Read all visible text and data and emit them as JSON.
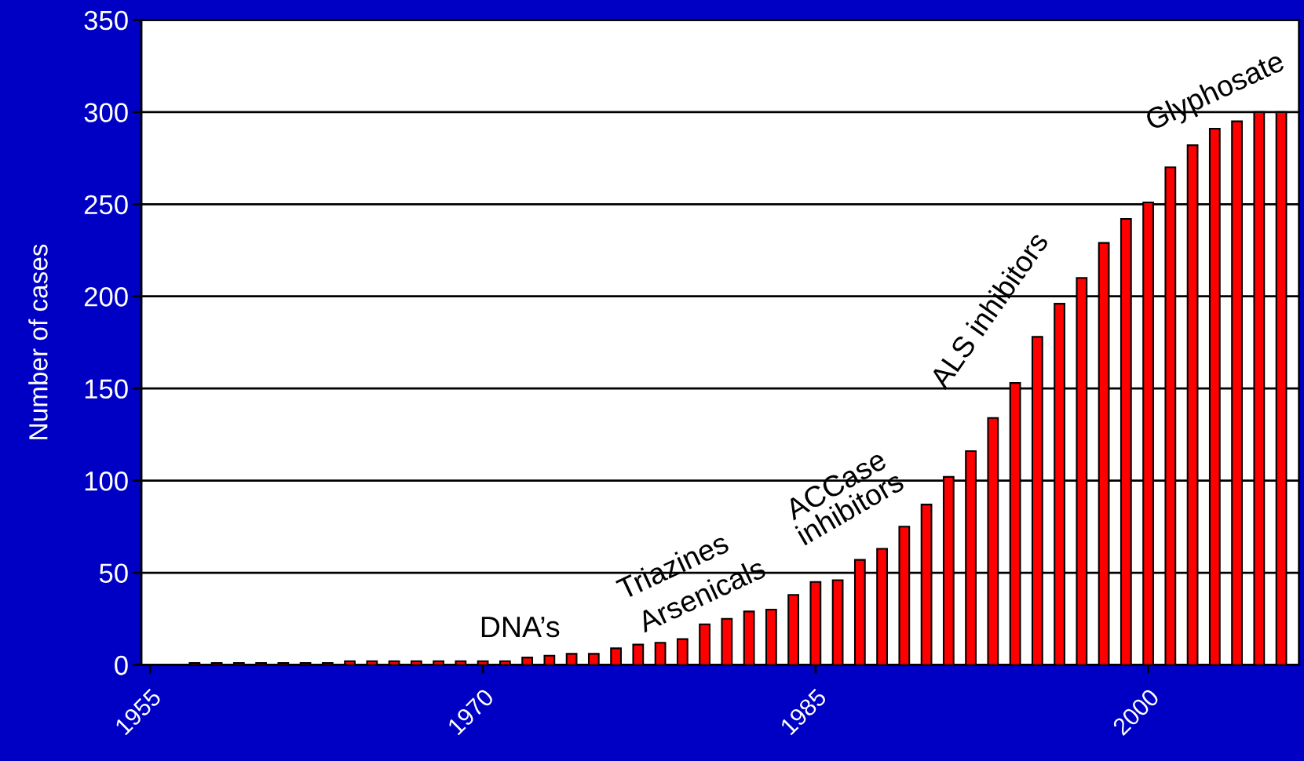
{
  "chart_data": {
    "type": "bar",
    "ylabel": "Number of cases",
    "x": [
      1957,
      1958,
      1959,
      1960,
      1961,
      1962,
      1963,
      1964,
      1965,
      1966,
      1967,
      1968,
      1969,
      1970,
      1971,
      1972,
      1973,
      1974,
      1975,
      1976,
      1977,
      1978,
      1979,
      1980,
      1981,
      1982,
      1983,
      1984,
      1985,
      1986,
      1987,
      1988,
      1989,
      1990,
      1991,
      1992,
      1993,
      1994,
      1995,
      1996,
      1997,
      1998,
      1999,
      2000,
      2001,
      2002,
      2003,
      2004,
      2005,
      2006
    ],
    "values": [
      1,
      1,
      1,
      1,
      1,
      1,
      1,
      2,
      2,
      2,
      2,
      2,
      2,
      2,
      2,
      4,
      5,
      6,
      6,
      9,
      11,
      12,
      14,
      22,
      25,
      29,
      30,
      38,
      45,
      46,
      57,
      63,
      75,
      87,
      102,
      116,
      134,
      153,
      178,
      196,
      210,
      229,
      242,
      251,
      270,
      282,
      291,
      295,
      300,
      300
    ],
    "color": "#ff0000",
    "xlim": [
      1954.6,
      2006.8
    ],
    "xticks": [
      1955,
      1970,
      1985,
      2000
    ],
    "ylim": [
      0,
      350
    ],
    "yticks": [
      0,
      50,
      100,
      150,
      200,
      250,
      300,
      350
    ],
    "grid": "y",
    "annotations": [
      "DNA’s",
      "Triazines",
      "Arsenicals",
      "ACCase\ninhibitors",
      "ALS inhibitors",
      "Glyphosate"
    ]
  }
}
